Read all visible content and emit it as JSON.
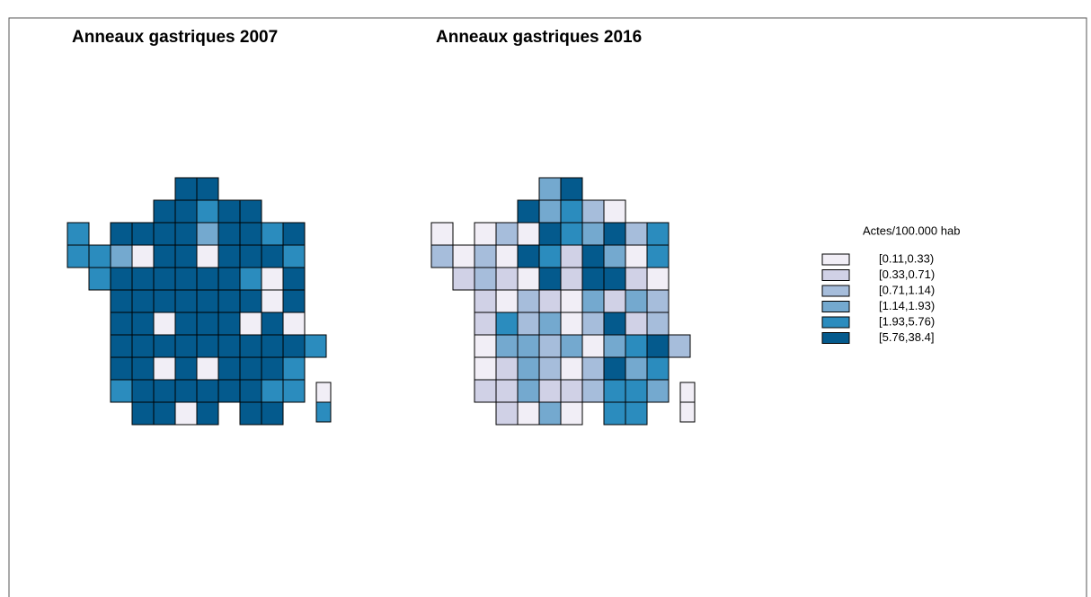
{
  "maps": [
    {
      "title": "Anneaux gastriques 2007",
      "regions": [
        5,
        5,
        5,
        5,
        4,
        5,
        5,
        4,
        5,
        5,
        5,
        5,
        3,
        5,
        5,
        4,
        5,
        4,
        4,
        3,
        0,
        5,
        5,
        0,
        5,
        5,
        5,
        4,
        4,
        5,
        5,
        5,
        5,
        5,
        5,
        4,
        0,
        5,
        5,
        5,
        5,
        5,
        5,
        5,
        5,
        0,
        5,
        5,
        5,
        0,
        5,
        5,
        5,
        0,
        5,
        0,
        5,
        5,
        5,
        5,
        5,
        5,
        5,
        5,
        5,
        4,
        5,
        5,
        0,
        5,
        0,
        5,
        5,
        5,
        4,
        4,
        5,
        5,
        5,
        5,
        5,
        5,
        4,
        4,
        5,
        5,
        0,
        5,
        5,
        5,
        0,
        4
      ]
    },
    {
      "title": "Anneaux gastriques 2016",
      "regions": [
        3,
        5,
        5,
        3,
        4,
        2,
        0,
        0,
        0,
        2,
        0,
        5,
        4,
        3,
        5,
        2,
        4,
        2,
        0,
        2,
        0,
        5,
        4,
        1,
        5,
        3,
        0,
        4,
        1,
        2,
        1,
        0,
        5,
        1,
        5,
        5,
        1,
        0,
        1,
        0,
        2,
        1,
        0,
        3,
        1,
        3,
        2,
        1,
        4,
        2,
        3,
        0,
        2,
        5,
        1,
        2,
        0,
        3,
        3,
        2,
        3,
        0,
        3,
        4,
        5,
        2,
        0,
        1,
        3,
        2,
        0,
        2,
        5,
        3,
        4,
        1,
        1,
        3,
        1,
        1,
        2,
        4,
        4,
        3,
        1,
        0,
        3,
        0,
        4,
        4,
        0,
        0
      ]
    }
  ],
  "legend": {
    "title": "Actes/100.000 hab",
    "classes": [
      {
        "label": "[0.11,0.33)",
        "color": "#f1eef6"
      },
      {
        "label": "[0.33,0.71)",
        "color": "#d0d1e6"
      },
      {
        "label": "[0.71,1.14)",
        "color": "#a6bddb"
      },
      {
        "label": "[1.14,1.93)",
        "color": "#74a9cf"
      },
      {
        "label": "[1.93,5.76)",
        "color": "#2b8cbe"
      },
      {
        "label": "[5.76,38.4]",
        "color": "#045a8d"
      }
    ]
  }
}
